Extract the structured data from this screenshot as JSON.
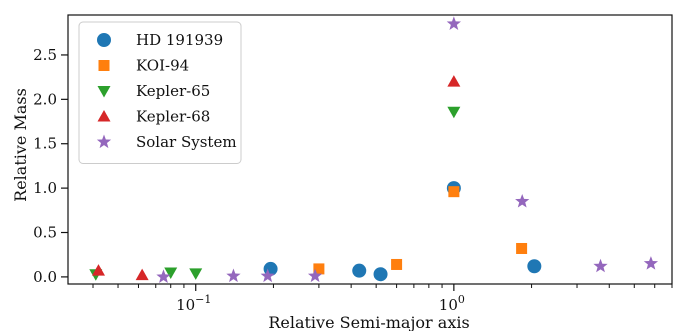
{
  "chart_data": {
    "type": "scatter",
    "xscale": "log",
    "xlim": [
      0.032,
      7.0
    ],
    "ylim": [
      -0.08,
      2.95
    ],
    "xlabel": "Relative Semi-major axis",
    "ylabel": "Relative Mass",
    "x_ticks": [
      {
        "value": 0.1,
        "base": "10",
        "exp": "−1"
      },
      {
        "value": 1,
        "base": "10",
        "exp": "0"
      }
    ],
    "y_ticks": [
      0.0,
      0.5,
      1.0,
      1.5,
      2.0,
      2.5
    ],
    "y_tick_labels": [
      "0.0",
      "0.5",
      "1.0",
      "1.5",
      "2.0",
      "2.5"
    ],
    "grid": false,
    "legend_position": "top-left",
    "series": [
      {
        "name": "HD 191939",
        "marker": "circle",
        "color": "#1f77b4",
        "points": [
          [
            0.195,
            0.09
          ],
          [
            0.43,
            0.07
          ],
          [
            0.52,
            0.03
          ],
          [
            1.0,
            1.0
          ],
          [
            2.05,
            0.12
          ]
        ]
      },
      {
        "name": "KOI-94",
        "marker": "square",
        "color": "#ff7f0e",
        "points": [
          [
            0.3,
            0.09
          ],
          [
            0.6,
            0.14
          ],
          [
            1.0,
            0.96
          ],
          [
            1.83,
            0.32
          ]
        ]
      },
      {
        "name": "Kepler-65",
        "marker": "triangle-down",
        "color": "#2ca02c",
        "points": [
          [
            0.041,
            0.03
          ],
          [
            0.08,
            0.05
          ],
          [
            0.1,
            0.04
          ],
          [
            1.0,
            1.86
          ]
        ]
      },
      {
        "name": "Kepler-68",
        "marker": "triangle-up",
        "color": "#d62728",
        "points": [
          [
            0.042,
            0.07
          ],
          [
            0.062,
            0.02
          ],
          [
            1.0,
            2.2
          ]
        ]
      },
      {
        "name": "Solar System",
        "marker": "star",
        "color": "#9467bd",
        "points": [
          [
            0.075,
            0.0
          ],
          [
            0.14,
            0.01
          ],
          [
            0.19,
            0.01
          ],
          [
            0.29,
            0.01
          ],
          [
            1.0,
            2.85
          ],
          [
            1.84,
            0.85
          ],
          [
            3.7,
            0.12
          ],
          [
            5.8,
            0.15
          ]
        ]
      }
    ]
  }
}
